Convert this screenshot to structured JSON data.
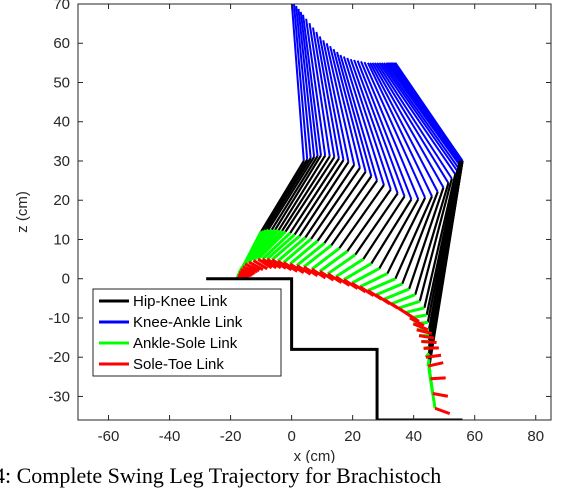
{
  "caption": "4: Complete Swing Leg Trajectory for Brachistoch",
  "chart_data": {
    "type": "line",
    "xlabel": "x (cm)",
    "ylabel": "z (cm)",
    "xlim": [
      -70,
      85
    ],
    "ylim": [
      -36,
      70
    ],
    "xticks": [
      -60,
      -40,
      -20,
      0,
      20,
      40,
      60,
      80
    ],
    "yticks": [
      -30,
      -20,
      -10,
      0,
      10,
      20,
      30,
      40,
      50,
      60,
      70
    ],
    "grid": false,
    "legend_position": "bottom-left",
    "legend": [
      {
        "label": "Hip-Knee Link",
        "color": "#000000"
      },
      {
        "label": "Knee-Ankle Link",
        "color": "#0000ff"
      },
      {
        "label": "Ankle-Sole Link",
        "color": "#00ff00"
      },
      {
        "label": "Sole-Toe Link",
        "color": "#ff0000"
      }
    ],
    "terrain": {
      "color": "#000000",
      "x": [
        -28,
        0,
        0,
        28,
        28,
        56
      ],
      "z": [
        0,
        0,
        -18,
        -18,
        -36,
        -36
      ]
    },
    "trajectory": {
      "hip": {
        "x": [
          0,
          2,
          4,
          7,
          10,
          13,
          16,
          19,
          22,
          25,
          27,
          29,
          31,
          32,
          33,
          34
        ],
        "z": [
          71,
          69,
          67,
          64,
          61,
          59,
          57,
          56,
          55.5,
          55,
          55,
          55,
          55,
          55,
          55,
          55
        ]
      },
      "knee": {
        "x": [
          4,
          7,
          10,
          14,
          18,
          23,
          28,
          34,
          40,
          46,
          51,
          54,
          55,
          55,
          56,
          56
        ],
        "z": [
          30,
          31,
          31.5,
          31,
          30,
          28,
          25,
          22,
          20,
          21,
          24,
          27,
          29,
          30,
          30,
          30
        ]
      },
      "ankle": {
        "x": [
          -10,
          -8,
          -5,
          -2,
          2,
          7,
          13,
          20,
          27,
          34,
          40,
          44,
          45,
          45,
          45,
          45
        ],
        "z": [
          12,
          12.5,
          12.5,
          12,
          11,
          10,
          8.5,
          6.5,
          3.5,
          0,
          -3.5,
          -8,
          -13,
          -17,
          -21,
          -23
        ]
      },
      "sole": {
        "x": [
          -18,
          -17,
          -15,
          -11,
          -7,
          -2,
          4,
          11,
          18,
          25,
          32,
          38,
          41,
          43,
          45,
          47
        ],
        "z": [
          0,
          2,
          4,
          5,
          5,
          4,
          3,
          1.5,
          -0.5,
          -3,
          -6,
          -9,
          -13,
          -17,
          -23,
          -33
        ]
      },
      "toe": {
        "x": [
          -13,
          -12,
          -10,
          -6,
          -2,
          3,
          9,
          16,
          23,
          30,
          37,
          43,
          46,
          48,
          50,
          54
        ],
        "z": [
          1,
          1.5,
          2,
          2.5,
          2.5,
          1.5,
          0.5,
          -1,
          -3,
          -5.5,
          -8.5,
          -11.5,
          -14,
          -17,
          -22,
          -35
        ]
      }
    }
  }
}
